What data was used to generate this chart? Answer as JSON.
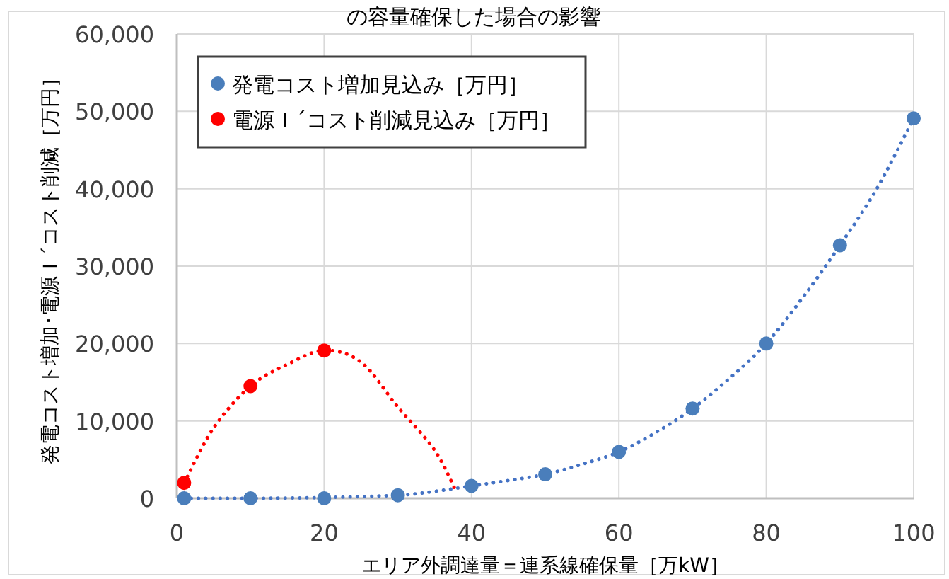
{
  "chart_data": {
    "type": "scatter",
    "title": "の容量確保した場合の影響",
    "xlabel": "エリア外調達量＝連系線確保量［万kW］",
    "ylabel": "発電コスト増加･電源Ｉ´コスト削減［万円］",
    "xlim": [
      0,
      100
    ],
    "xticks": [
      0,
      20,
      40,
      60,
      80,
      100
    ],
    "ylim": [
      0,
      60000
    ],
    "yticks": [
      {
        "value": 0,
        "label": "0"
      },
      {
        "value": 10000,
        "label": "10,000"
      },
      {
        "value": 20000,
        "label": "20,000"
      },
      {
        "value": 30000,
        "label": "30,000"
      },
      {
        "value": 40000,
        "label": "40,000"
      },
      {
        "value": 50000,
        "label": "50,000"
      },
      {
        "value": 60000,
        "label": "60,000"
      }
    ],
    "grid": true,
    "legend": "top left",
    "marker": "circle",
    "series": [
      {
        "type": "line",
        "color": "#4472c4",
        "line_style": "dotted",
        "marker": "none",
        "x": [
          1,
          10,
          20,
          30,
          35,
          40,
          45,
          50,
          55,
          60,
          65,
          70,
          75,
          80,
          85,
          90,
          95,
          100
        ],
        "values": [
          0,
          0,
          100,
          400,
          900,
          1600,
          2300,
          3100,
          4400,
          6000,
          8500,
          11600,
          15500,
          20000,
          26000,
          32700,
          40000,
          49100
        ]
      },
      {
        "type": "line",
        "color": "#ff0000",
        "line_style": "dotted",
        "marker": "none",
        "x": [
          1,
          5,
          10,
          15,
          20,
          25,
          30,
          35,
          38
        ],
        "values": [
          2000,
          9100,
          14500,
          17300,
          19100,
          17600,
          11800,
          6200,
          700
        ]
      },
      {
        "type": "scatter",
        "name": "発電コスト増加見込み［万円］",
        "color": "#4a7ebb",
        "x": [
          1,
          10,
          20,
          30,
          40,
          50,
          60,
          70,
          80,
          90,
          100
        ],
        "values": [
          0,
          0,
          0,
          400,
          1600,
          3100,
          6000,
          11600,
          20000,
          32700,
          49100
        ]
      },
      {
        "type": "scatter",
        "name": "電源Ｉ´コスト削減見込み［万円］",
        "color": "#ff0000",
        "x": [
          1,
          10,
          20
        ],
        "values": [
          2000,
          14500,
          19100
        ]
      }
    ]
  }
}
